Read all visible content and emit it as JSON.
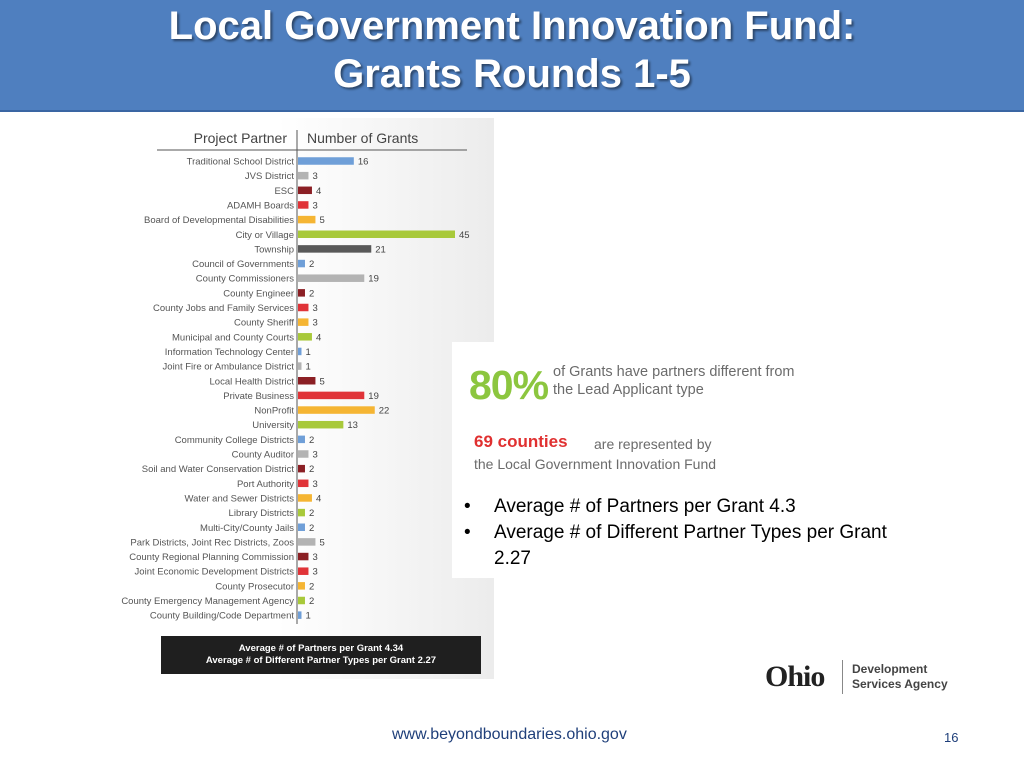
{
  "slide": {
    "title_line1": "Local Government Innovation Fund:",
    "title_line2": "Grants Rounds 1-5",
    "footer_url": "www.beyondboundaries.ohio.gov",
    "page_number": "16"
  },
  "chart_data": {
    "type": "bar",
    "orientation": "horizontal",
    "header_category": "Project Partner",
    "header_value": "Number of Grants",
    "categories": [
      "Traditional School District",
      "JVS District",
      "ESC",
      "ADAMH Boards",
      "Board of Developmental Disabilities",
      "City or Village",
      "Township",
      "Council of Governments",
      "County Commissioners",
      "County Engineer",
      "County Jobs and Family Services",
      "County Sheriff",
      "Municipal and County Courts",
      "Information Technology Center",
      "Joint Fire or Ambulance District",
      "Local Health District",
      "Private Business",
      "NonProfit",
      "University",
      "Community College Districts",
      "County Auditor",
      "Soil and Water Conservation District",
      "Port Authority",
      "Water and Sewer Districts",
      "Library Districts",
      "Multi-City/County Jails",
      "Park Districts, Joint Rec Districts, Zoos",
      "County Regional Planning Commission",
      "Joint Economic Development Districts",
      "County Prosecutor",
      "County Emergency Management Agency",
      "County Building/Code Department"
    ],
    "values": [
      16,
      3,
      4,
      3,
      5,
      45,
      21,
      2,
      19,
      2,
      3,
      3,
      4,
      1,
      1,
      5,
      19,
      22,
      13,
      2,
      3,
      2,
      3,
      4,
      2,
      2,
      5,
      3,
      3,
      2,
      2,
      1
    ],
    "colors": [
      "#6f9fd8",
      "#b3b3b3",
      "#8b1f24",
      "#e03338",
      "#f5b533",
      "#a8c93a",
      "#595959",
      "#6f9fd8",
      "#b3b3b3",
      "#8b1f24",
      "#e03338",
      "#f5b533",
      "#a8c93a",
      "#6f9fd8",
      "#b3b3b3",
      "#8b1f24",
      "#e03338",
      "#f5b533",
      "#a8c93a",
      "#6f9fd8",
      "#b3b3b3",
      "#8b1f24",
      "#e03338",
      "#f5b533",
      "#a8c93a",
      "#6f9fd8",
      "#b3b3b3",
      "#8b1f24",
      "#e03338",
      "#f5b533",
      "#a8c93a",
      "#6f9fd8"
    ],
    "xlim": [
      0,
      45
    ],
    "grid": false,
    "legend": "none",
    "summary_line1": "Average # of Partners per Grant 4.34",
    "summary_line2": "Average # of Different Partner Types per Grant 2.27"
  },
  "stats": {
    "pct_value": "80%",
    "pct_text": "of Grants have partners different from the Lead Applicant type",
    "counties_strong": "69 counties",
    "counties_rest": "are represented by",
    "counties_line2": "the Local Government Innovation Fund"
  },
  "bullets": [
    "Average #  of Partners per Grant 4.3",
    "Average # of Different Partner Types per Grant 2.27"
  ],
  "logo": {
    "ohio": "Ohio",
    "agency_line1": "Development",
    "agency_line2": "Services Agency"
  }
}
